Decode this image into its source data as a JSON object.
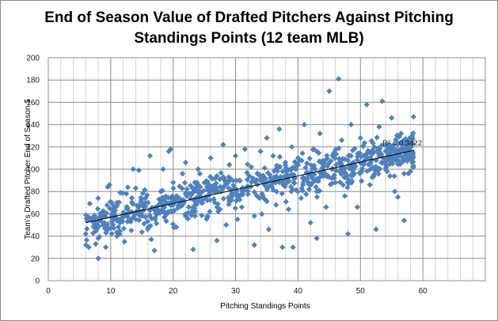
{
  "chart_data": {
    "type": "scatter",
    "title_lines": [
      "End of Season Value of Drafted Pitchers Against Pitching",
      "Standings Points (12 team MLB)"
    ],
    "xlabel": "Pitching Standings  Points",
    "ylabel": "Team's Drafted Pitcher End of Season $",
    "xlim": [
      0,
      70
    ],
    "ylim": [
      0,
      200
    ],
    "x_ticks": [
      0,
      10,
      20,
      30,
      40,
      50,
      60
    ],
    "y_ticks": [
      0,
      20,
      40,
      60,
      80,
      100,
      120,
      140,
      160,
      180,
      200
    ],
    "x_minor_step": 2,
    "y_major_gridlines": true,
    "x_gridlines": true,
    "marker_color": "#4f81bd",
    "marker_shape": "diamond",
    "point_count": 900,
    "trendline": {
      "type": "linear",
      "x_range": [
        6,
        58.6
      ],
      "y_at_start": 52,
      "y_at_end": 117,
      "color": "#000000",
      "r_squared_label": "R² = 0.3422"
    },
    "points": [
      [
        6,
        42
      ],
      [
        6.5,
        30
      ],
      [
        7,
        55
      ],
      [
        7.3,
        48
      ],
      [
        7.6,
        33
      ],
      [
        8,
        38
      ],
      [
        8,
        20
      ],
      [
        8.4,
        60
      ],
      [
        9,
        52
      ],
      [
        9.2,
        30
      ],
      [
        9.5,
        84
      ],
      [
        9.8,
        86
      ],
      [
        10,
        47
      ],
      [
        10.5,
        65
      ],
      [
        11,
        40
      ],
      [
        11,
        70
      ],
      [
        11.5,
        52
      ],
      [
        12,
        58
      ],
      [
        12.2,
        35
      ],
      [
        12.5,
        78
      ],
      [
        13,
        62
      ],
      [
        13.3,
        45
      ],
      [
        13.6,
        100
      ],
      [
        14,
        55
      ],
      [
        14,
        83
      ],
      [
        14.5,
        99
      ],
      [
        15,
        58
      ],
      [
        15.5,
        70
      ],
      [
        16,
        48
      ],
      [
        16.3,
        112
      ],
      [
        16.5,
        37
      ],
      [
        17,
        27
      ],
      [
        17.5,
        64
      ],
      [
        18,
        80
      ],
      [
        18.4,
        100
      ],
      [
        19,
        60
      ],
      [
        19.3,
        116
      ],
      [
        19.6,
        118
      ],
      [
        20,
        88
      ],
      [
        20,
        69
      ],
      [
        20.5,
        48
      ],
      [
        21,
        74
      ],
      [
        21.5,
        96
      ],
      [
        22,
        106
      ],
      [
        22.5,
        66
      ],
      [
        23,
        84
      ],
      [
        23.2,
        28
      ],
      [
        23.5,
        58
      ],
      [
        24,
        100
      ],
      [
        24.5,
        70
      ],
      [
        25,
        88
      ],
      [
        25.5,
        58
      ],
      [
        26,
        110
      ],
      [
        26.5,
        80
      ],
      [
        27,
        36
      ],
      [
        27,
        94
      ],
      [
        27.5,
        64
      ],
      [
        28,
        122
      ],
      [
        28.2,
        85
      ],
      [
        28.5,
        50
      ],
      [
        29,
        104
      ],
      [
        29.5,
        76
      ],
      [
        30,
        112
      ],
      [
        30.3,
        55
      ],
      [
        30.6,
        90
      ],
      [
        31,
        66
      ],
      [
        31.5,
        118
      ],
      [
        32,
        84
      ],
      [
        32.5,
        102
      ],
      [
        33,
        58
      ],
      [
        33,
        32
      ],
      [
        33.5,
        96
      ],
      [
        34,
        116
      ],
      [
        34.5,
        74
      ],
      [
        35,
        128
      ],
      [
        35.3,
        46
      ],
      [
        35.6,
        92
      ],
      [
        36,
        112
      ],
      [
        36.5,
        68
      ],
      [
        37,
        136
      ],
      [
        37.5,
        88
      ],
      [
        38,
        106
      ],
      [
        38.5,
        64
      ],
      [
        39,
        120
      ],
      [
        39.2,
        30
      ],
      [
        39.5,
        92
      ],
      [
        40,
        110
      ],
      [
        40.5,
        74
      ],
      [
        41,
        140
      ],
      [
        41.5,
        96
      ],
      [
        42,
        52
      ],
      [
        42.5,
        118
      ],
      [
        43,
        80
      ],
      [
        43.5,
        132
      ],
      [
        44,
        104
      ],
      [
        44.5,
        66
      ],
      [
        45,
        170
      ],
      [
        45.5,
        112
      ],
      [
        46,
        88
      ],
      [
        46.5,
        181
      ],
      [
        47,
        126
      ],
      [
        47.5,
        76
      ],
      [
        48,
        108
      ],
      [
        48.5,
        140
      ],
      [
        49,
        96
      ],
      [
        49.5,
        66
      ],
      [
        50,
        128
      ],
      [
        50.5,
        104
      ],
      [
        51,
        158
      ],
      [
        51.5,
        86
      ],
      [
        52,
        116
      ],
      [
        52.5,
        46
      ],
      [
        53,
        138
      ],
      [
        53.5,
        161
      ],
      [
        54,
        100
      ],
      [
        54.5,
        122
      ],
      [
        55,
        146
      ],
      [
        55.5,
        80
      ],
      [
        56,
        108
      ],
      [
        56.5,
        132
      ],
      [
        57,
        54
      ],
      [
        57.5,
        124
      ],
      [
        58,
        98
      ],
      [
        58.5,
        147
      ],
      [
        37.5,
        30
      ],
      [
        48,
        42
      ],
      [
        56,
        75
      ],
      [
        57,
        96
      ],
      [
        22,
        58
      ],
      [
        43,
        38
      ]
    ]
  }
}
